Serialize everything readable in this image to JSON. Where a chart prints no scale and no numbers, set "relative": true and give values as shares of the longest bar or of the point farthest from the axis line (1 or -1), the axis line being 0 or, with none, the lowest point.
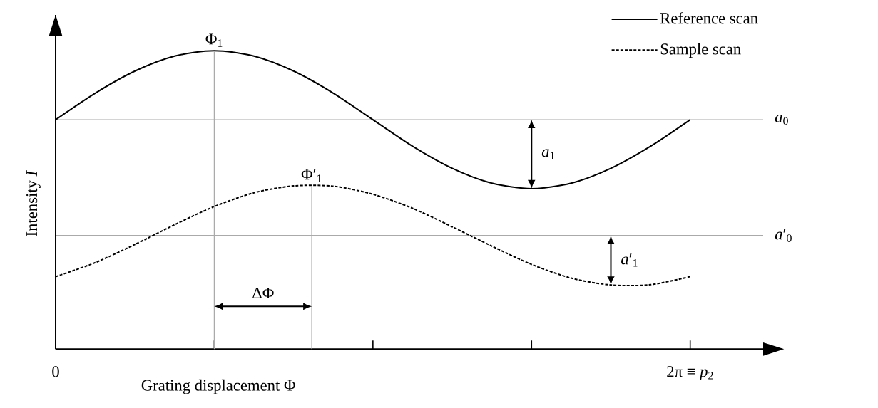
{
  "chart_data": {
    "type": "line",
    "relative": true,
    "xlabel": "Grating displacement Φ",
    "ylabel": "Intensity *I*",
    "categories": [
      "0",
      null,
      null,
      null,
      null,
      null,
      null,
      null,
      null,
      null,
      null,
      null,
      null,
      null,
      null,
      null,
      "2π ≡ *p*$_{2}$"
    ],
    "series": [
      {
        "name": "Reference scan",
        "color": "#000000",
        "line_style": "solid",
        "values": [
          0.769,
          0.858,
          0.932,
          0.982,
          1,
          0.982,
          0.932,
          0.858,
          0.769,
          0.68,
          0.606,
          0.556,
          0.538,
          0.556,
          0.606,
          0.68,
          0.769
        ]
      },
      {
        "name": "Sample scan",
        "color": "#000000",
        "line_style": "dashed",
        "values": [
          0.243,
          0.29,
          0.351,
          0.417,
          0.478,
          0.524,
          0.547,
          0.546,
          0.519,
          0.472,
          0.41,
          0.345,
          0.284,
          0.238,
          0.215,
          0.216,
          0.243
        ]
      }
    ],
    "ref_lines": [
      {
        "axis": "y",
        "value": 0.769,
        "label": "*a*$_{0}$",
        "color": "#aaaaaa"
      },
      {
        "axis": "y",
        "value": 0.381,
        "label": "*a*′$_{0}$",
        "color": "#aaaaaa"
      }
    ],
    "annotations": [
      "Φ$_{1}$",
      "Φ′$_{1}$",
      "ΔΦ",
      "*a*$_{1}$",
      "*a*′$_{1}$"
    ],
    "legend": "top right",
    "grid": false,
    "marker": "none"
  }
}
